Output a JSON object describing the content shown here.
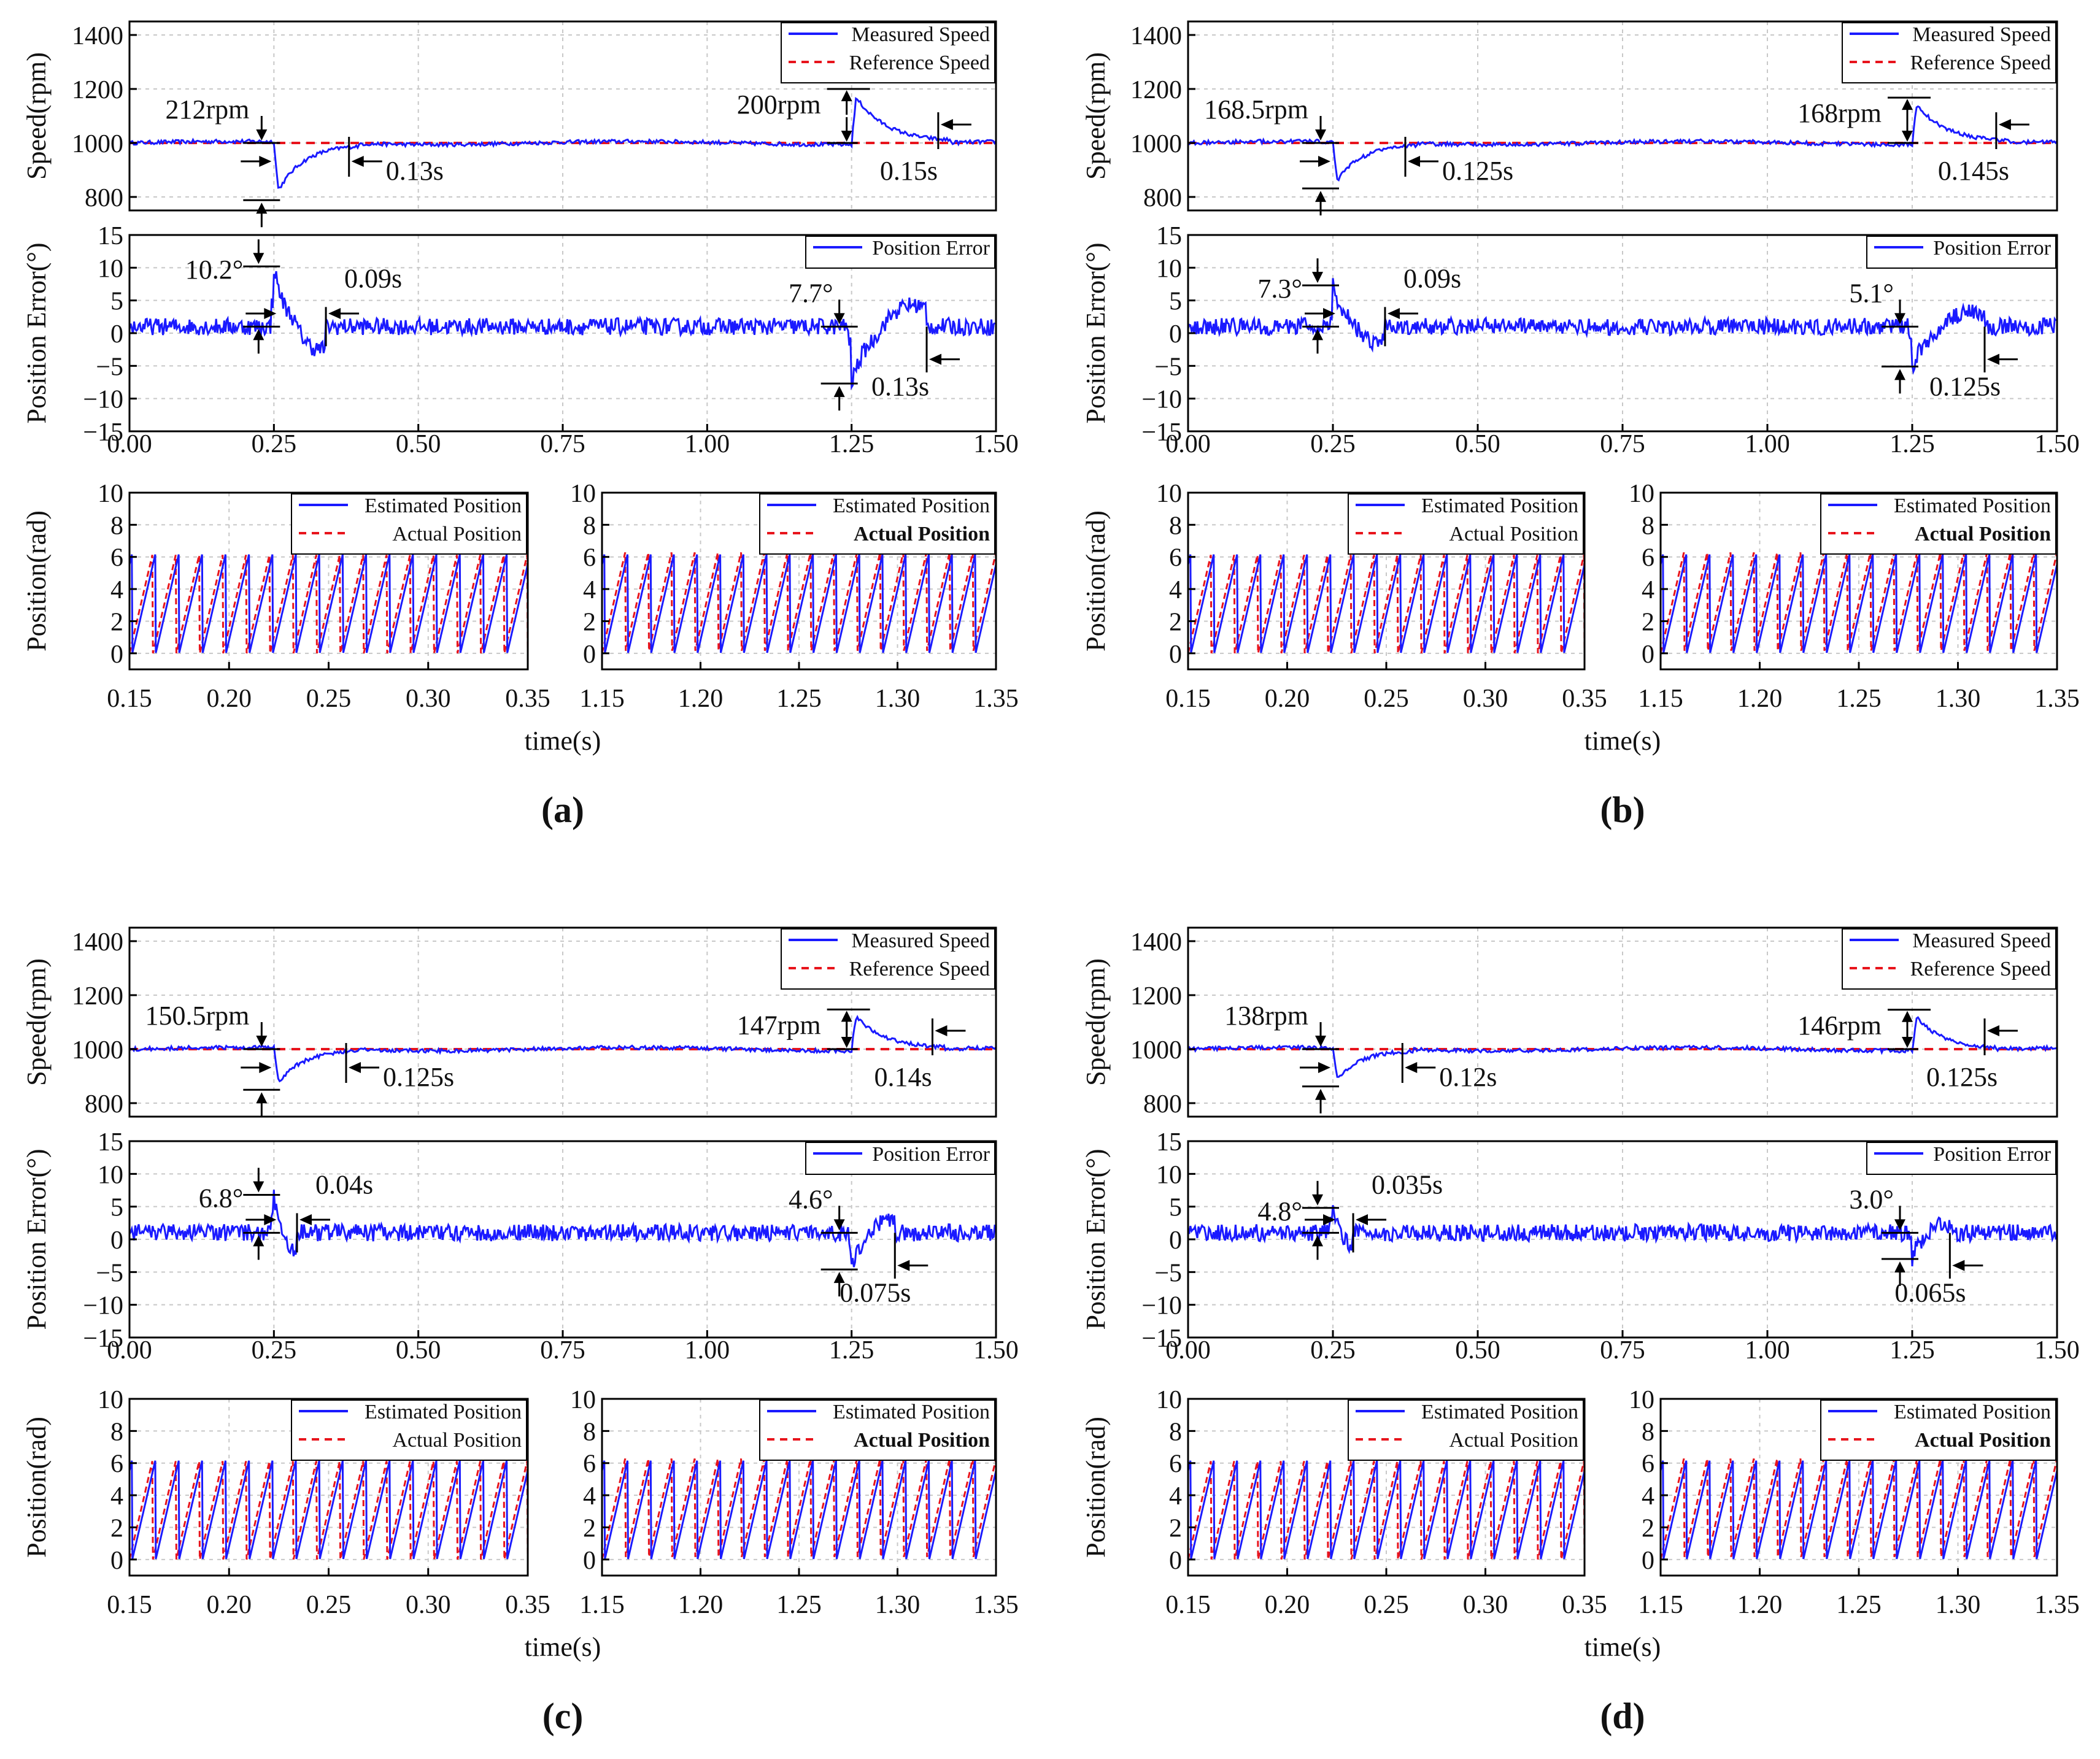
{
  "figure": {
    "colors": {
      "measured": "#1a1aff",
      "reference": "#e8141c",
      "axis": "#000000",
      "grid": "#c8c8c8"
    },
    "time_label": "time(s)",
    "y_labels": {
      "speed": "Speed(rpm)",
      "error": "Position Error(°)",
      "position": "Position(rad)"
    },
    "legends": {
      "speed": [
        "Measured Speed",
        "Reference Speed"
      ],
      "error": [
        "Position Error"
      ],
      "position": [
        "Estimated Position",
        "Actual Position"
      ]
    },
    "axes": {
      "speed": {
        "ylim": [
          750,
          1450
        ],
        "ticks": [
          "800",
          "1000",
          "1200",
          "1400"
        ]
      },
      "error": {
        "ylim": [
          -15,
          15
        ],
        "ticks": [
          "15",
          "10",
          "5",
          "0",
          "−5",
          "−10",
          "−15"
        ]
      },
      "time": {
        "xlim": [
          0,
          1.5
        ],
        "ticks": [
          "0.00",
          "0.25",
          "0.50",
          "0.75",
          "1.00",
          "1.25",
          "1.50"
        ]
      },
      "position": {
        "ylim": [
          -1,
          10
        ],
        "ticks": [
          "10",
          "8",
          "6",
          "4",
          "2",
          "0"
        ]
      },
      "zoom1": {
        "xlim": [
          0.15,
          0.35
        ],
        "ticks": [
          "0.15",
          "0.20",
          "0.25",
          "0.30",
          "0.35"
        ]
      },
      "zoom2": {
        "xlim": [
          1.15,
          1.35
        ],
        "ticks": [
          "1.15",
          "1.20",
          "1.25",
          "1.30",
          "1.35"
        ]
      }
    }
  },
  "chart_data": [
    {
      "type": "line",
      "panel": "(a)",
      "label": "(a)",
      "reference_speed": 1000,
      "speed_dip": {
        "t": 0.25,
        "magnitude": 212,
        "recovery": 0.13,
        "label": "212rpm",
        "time_label": "0.13s"
      },
      "speed_overshoot": {
        "t": 1.25,
        "magnitude": 200,
        "recovery": 0.15,
        "label": "200rpm",
        "time_label": "0.15s"
      },
      "error_peak": {
        "t": 0.25,
        "value": 10.2,
        "recovery": 0.09,
        "label": "10.2°",
        "time_label": "0.09s"
      },
      "error_dip": {
        "t": 1.25,
        "value": -7.7,
        "recovery": 0.13,
        "label": "7.7°",
        "time_label": "0.13s"
      }
    },
    {
      "type": "line",
      "panel": "(b)",
      "label": "(b)",
      "reference_speed": 1000,
      "speed_dip": {
        "t": 0.25,
        "magnitude": 168.5,
        "recovery": 0.125,
        "label": "168.5rpm",
        "time_label": "0.125s"
      },
      "speed_overshoot": {
        "t": 1.25,
        "magnitude": 168,
        "recovery": 0.145,
        "label": "168rpm",
        "time_label": "0.145s"
      },
      "error_peak": {
        "t": 0.25,
        "value": 7.3,
        "recovery": 0.09,
        "label": "7.3°",
        "time_label": "0.09s"
      },
      "error_dip": {
        "t": 1.25,
        "value": -5.1,
        "recovery": 0.125,
        "label": "5.1°",
        "time_label": "0.125s"
      }
    },
    {
      "type": "line",
      "panel": "(c)",
      "label": "(c)",
      "reference_speed": 1000,
      "speed_dip": {
        "t": 0.25,
        "magnitude": 150.5,
        "recovery": 0.125,
        "label": "150.5rpm",
        "time_label": "0.125s"
      },
      "speed_overshoot": {
        "t": 1.25,
        "magnitude": 147,
        "recovery": 0.14,
        "label": "147rpm",
        "time_label": "0.14s"
      },
      "error_peak": {
        "t": 0.25,
        "value": 6.8,
        "recovery": 0.04,
        "label": "6.8°",
        "time_label": "0.04s"
      },
      "error_dip": {
        "t": 1.25,
        "value": -4.6,
        "recovery": 0.075,
        "label": "4.6°",
        "time_label": "0.075s"
      }
    },
    {
      "type": "line",
      "panel": "(d)",
      "label": "(d)",
      "reference_speed": 1000,
      "speed_dip": {
        "t": 0.25,
        "magnitude": 138,
        "recovery": 0.12,
        "label": "138rpm",
        "time_label": "0.12s"
      },
      "speed_overshoot": {
        "t": 1.25,
        "magnitude": 146,
        "recovery": 0.125,
        "label": "146rpm",
        "time_label": "0.125s"
      },
      "error_peak": {
        "t": 0.25,
        "value": 4.8,
        "recovery": 0.035,
        "label": "4.8°",
        "time_label": "0.035s"
      },
      "error_dip": {
        "t": 1.25,
        "value": -3.0,
        "recovery": 0.065,
        "label": "3.0°",
        "time_label": "0.065s"
      }
    }
  ]
}
